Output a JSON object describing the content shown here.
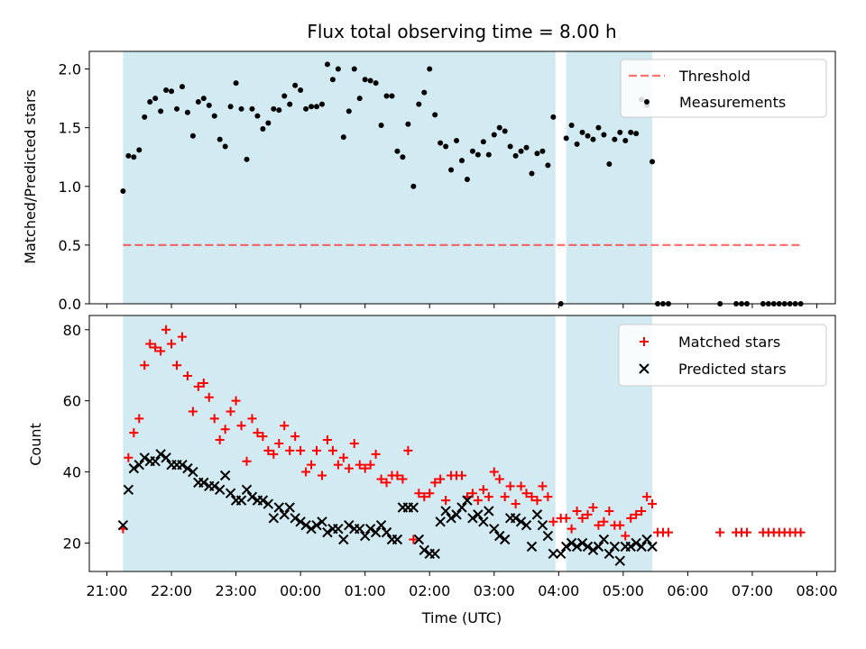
{
  "title": "Flux total observing time = 8.00 h",
  "colors": {
    "shade": "#add8e6",
    "threshold": "#ff0000",
    "matched": "#ff0000",
    "predicted": "#000000",
    "measurement": "#000000"
  },
  "chart_data": [
    {
      "type": "scatter",
      "ylabel": "Matched/Predicted stars",
      "xlim": [
        "21:00",
        "08:00"
      ],
      "ylim": [
        0,
        2.15
      ],
      "yticks": [
        "0.0",
        "0.5",
        "1.0",
        "1.5",
        "2.0"
      ],
      "yticks_values": [
        0,
        0.5,
        1.0,
        1.5,
        2.0
      ],
      "legend": {
        "position": "top-right",
        "entries": [
          "Threshold",
          "Measurements"
        ]
      },
      "shaded_spans": [
        [
          "21:15",
          "03:57"
        ],
        [
          "04:07",
          "05:27"
        ]
      ],
      "threshold": {
        "name": "Threshold",
        "y": 0.5,
        "x": [
          "21:15",
          "07:45"
        ]
      },
      "series": [
        {
          "name": "Measurements",
          "x": [
            "21:15",
            "21:20",
            "21:25",
            "21:30",
            "21:35",
            "21:40",
            "21:45",
            "21:50",
            "21:55",
            "22:00",
            "22:05",
            "22:10",
            "22:15",
            "22:20",
            "22:25",
            "22:30",
            "22:35",
            "22:40",
            "22:45",
            "22:50",
            "22:55",
            "23:00",
            "23:05",
            "23:10",
            "23:15",
            "23:20",
            "23:25",
            "23:30",
            "23:35",
            "23:40",
            "23:45",
            "23:50",
            "23:55",
            "00:00",
            "00:05",
            "00:10",
            "00:15",
            "00:20",
            "00:25",
            "00:30",
            "00:35",
            "00:40",
            "00:45",
            "00:50",
            "00:55",
            "01:00",
            "01:05",
            "01:10",
            "01:15",
            "01:20",
            "01:25",
            "01:30",
            "01:35",
            "01:40",
            "01:45",
            "01:50",
            "01:55",
            "02:00",
            "02:05",
            "02:10",
            "02:15",
            "02:20",
            "02:25",
            "02:30",
            "02:35",
            "02:40",
            "02:45",
            "02:50",
            "02:55",
            "03:00",
            "03:05",
            "03:10",
            "03:15",
            "03:20",
            "03:25",
            "03:30",
            "03:35",
            "03:40",
            "03:45",
            "03:50",
            "03:55",
            "04:02",
            "04:07",
            "04:12",
            "04:17",
            "04:22",
            "04:27",
            "04:32",
            "04:37",
            "04:42",
            "04:47",
            "04:52",
            "04:57",
            "05:02",
            "05:07",
            "05:12",
            "05:17",
            "05:22",
            "05:27",
            "05:32",
            "05:37",
            "05:42",
            "06:30",
            "06:45",
            "06:50",
            "06:55",
            "07:10",
            "07:15",
            "07:20",
            "07:25",
            "07:30",
            "07:35",
            "07:40",
            "07:45"
          ],
          "y": [
            0.96,
            1.26,
            1.25,
            1.31,
            1.59,
            1.72,
            1.75,
            1.64,
            1.82,
            1.81,
            1.66,
            1.85,
            1.63,
            1.43,
            1.72,
            1.75,
            1.69,
            1.6,
            1.4,
            1.34,
            1.68,
            1.88,
            1.66,
            1.23,
            1.66,
            1.6,
            1.49,
            1.54,
            1.66,
            1.65,
            1.77,
            1.7,
            1.86,
            1.82,
            1.66,
            1.68,
            1.68,
            1.7,
            2.04,
            1.91,
            2.0,
            1.42,
            1.64,
            2.0,
            1.75,
            1.91,
            1.9,
            1.88,
            1.52,
            1.77,
            1.77,
            1.3,
            1.25,
            1.53,
            1.0,
            1.7,
            1.8,
            2.0,
            1.61,
            1.37,
            1.34,
            1.14,
            1.39,
            1.22,
            1.06,
            1.3,
            1.27,
            1.38,
            1.27,
            1.44,
            1.5,
            1.47,
            1.34,
            1.26,
            1.3,
            1.33,
            1.11,
            1.28,
            1.3,
            1.18,
            1.59,
            0.0,
            1.41,
            1.52,
            1.36,
            1.46,
            1.43,
            1.4,
            1.5,
            1.44,
            1.19,
            1.4,
            1.46,
            1.39,
            1.46,
            1.45,
            1.74,
            1.69,
            1.21,
            0.0,
            0.0,
            0.0,
            0.0,
            0.0,
            0.0,
            0.0,
            0.0,
            0.0,
            0.0,
            0.0,
            0.0,
            0.0,
            0.0,
            0.0
          ]
        }
      ]
    },
    {
      "type": "scatter",
      "xlabel": "Time (UTC)",
      "ylabel": "Count",
      "xlim": [
        "21:00",
        "08:00"
      ],
      "xticks": [
        "21:00",
        "22:00",
        "23:00",
        "00:00",
        "01:00",
        "02:00",
        "03:00",
        "04:00",
        "05:00",
        "06:00",
        "07:00",
        "08:00"
      ],
      "ylim": [
        12,
        84
      ],
      "yticks": [
        "20",
        "40",
        "60",
        "80"
      ],
      "yticks_values": [
        20,
        40,
        60,
        80
      ],
      "legend": {
        "position": "top-right",
        "entries": [
          "Matched stars",
          "Predicted stars"
        ]
      },
      "shaded_spans": [
        [
          "21:15",
          "03:57"
        ],
        [
          "04:07",
          "05:27"
        ]
      ],
      "series": [
        {
          "name": "Matched stars",
          "marker": "+",
          "x": [
            "21:15",
            "21:20",
            "21:25",
            "21:30",
            "21:35",
            "21:40",
            "21:45",
            "21:50",
            "21:55",
            "22:00",
            "22:05",
            "22:10",
            "22:15",
            "22:20",
            "22:25",
            "22:30",
            "22:35",
            "22:40",
            "22:45",
            "22:50",
            "22:55",
            "23:00",
            "23:05",
            "23:10",
            "23:15",
            "23:20",
            "23:25",
            "23:30",
            "23:35",
            "23:40",
            "23:45",
            "23:50",
            "23:55",
            "00:00",
            "00:05",
            "00:10",
            "00:15",
            "00:20",
            "00:25",
            "00:30",
            "00:35",
            "00:40",
            "00:45",
            "00:50",
            "00:55",
            "01:00",
            "01:05",
            "01:10",
            "01:15",
            "01:20",
            "01:25",
            "01:30",
            "01:35",
            "01:40",
            "01:45",
            "01:50",
            "01:55",
            "02:00",
            "02:05",
            "02:10",
            "02:15",
            "02:20",
            "02:25",
            "02:30",
            "02:35",
            "02:40",
            "02:45",
            "02:50",
            "02:55",
            "03:00",
            "03:05",
            "03:10",
            "03:15",
            "03:20",
            "03:25",
            "03:30",
            "03:35",
            "03:40",
            "03:45",
            "03:50",
            "03:55",
            "04:02",
            "04:07",
            "04:12",
            "04:17",
            "04:22",
            "04:27",
            "04:32",
            "04:37",
            "04:42",
            "04:47",
            "04:52",
            "04:57",
            "05:02",
            "05:07",
            "05:12",
            "05:17",
            "05:22",
            "05:27",
            "05:32",
            "05:37",
            "05:42",
            "06:30",
            "06:45",
            "06:50",
            "06:55",
            "07:10",
            "07:15",
            "07:20",
            "07:25",
            "07:30",
            "07:35",
            "07:40",
            "07:45"
          ],
          "y": [
            24,
            44,
            51,
            55,
            70,
            76,
            75,
            74,
            80,
            76,
            70,
            78,
            67,
            57,
            64,
            65,
            61,
            55,
            49,
            52,
            57,
            60,
            53,
            43,
            55,
            51,
            50,
            46,
            45,
            48,
            53,
            46,
            50,
            46,
            40,
            42,
            46,
            39,
            49,
            46,
            42,
            44,
            41,
            48,
            42,
            41,
            42,
            45,
            38,
            37,
            39,
            39,
            38,
            46,
            21,
            34,
            33,
            34,
            37,
            38,
            32,
            39,
            39,
            39,
            33,
            34,
            32,
            35,
            33,
            40,
            38,
            33,
            36,
            31,
            36,
            34,
            33,
            32,
            36,
            33,
            26,
            27,
            27,
            24,
            29,
            27,
            28,
            30,
            25,
            26,
            29,
            25,
            25,
            22,
            27,
            28,
            29,
            33,
            31,
            23,
            23,
            23,
            23,
            23,
            23,
            23,
            23,
            23,
            23,
            23,
            23,
            23,
            23,
            23
          ]
        },
        {
          "name": "Predicted stars",
          "marker": "x",
          "x": [
            "21:15",
            "21:20",
            "21:25",
            "21:30",
            "21:35",
            "21:40",
            "21:45",
            "21:50",
            "21:55",
            "22:00",
            "22:05",
            "22:10",
            "22:15",
            "22:20",
            "22:25",
            "22:30",
            "22:35",
            "22:40",
            "22:45",
            "22:50",
            "22:55",
            "23:00",
            "23:05",
            "23:10",
            "23:15",
            "23:20",
            "23:25",
            "23:30",
            "23:35",
            "23:40",
            "23:45",
            "23:50",
            "23:55",
            "00:00",
            "00:05",
            "00:10",
            "00:15",
            "00:20",
            "00:25",
            "00:30",
            "00:35",
            "00:40",
            "00:45",
            "00:50",
            "00:55",
            "01:00",
            "01:05",
            "01:10",
            "01:15",
            "01:20",
            "01:25",
            "01:30",
            "01:35",
            "01:40",
            "01:45",
            "01:50",
            "01:55",
            "02:00",
            "02:05",
            "02:10",
            "02:15",
            "02:20",
            "02:25",
            "02:30",
            "02:35",
            "02:40",
            "02:45",
            "02:50",
            "02:55",
            "03:00",
            "03:05",
            "03:10",
            "03:15",
            "03:20",
            "03:25",
            "03:30",
            "03:35",
            "03:40",
            "03:45",
            "03:50",
            "03:55",
            "04:02",
            "04:07",
            "04:12",
            "04:17",
            "04:22",
            "04:27",
            "04:32",
            "04:37",
            "04:42",
            "04:47",
            "04:52",
            "04:57",
            "05:02",
            "05:07",
            "05:12",
            "05:17",
            "05:22",
            "05:27"
          ],
          "y": [
            25,
            35,
            41,
            42,
            44,
            43,
            43,
            45,
            44,
            42,
            42,
            42,
            41,
            40,
            37,
            37,
            36,
            36,
            35,
            39,
            34,
            32,
            32,
            35,
            33,
            32,
            32,
            31,
            27,
            30,
            28,
            30,
            27,
            26,
            25,
            24,
            25,
            26,
            23,
            24,
            24,
            21,
            25,
            24,
            24,
            22,
            24,
            23,
            25,
            23,
            21,
            21,
            30,
            30,
            30,
            21,
            18,
            17,
            17,
            26,
            29,
            27,
            28,
            30,
            32,
            27,
            28,
            26,
            29,
            24,
            22,
            21,
            27,
            27,
            26,
            25,
            19,
            28,
            25,
            22,
            17,
            17,
            19,
            20,
            19,
            20,
            19,
            18,
            19,
            21,
            17,
            19,
            15,
            19,
            19,
            20,
            19,
            21,
            19
          ]
        }
      ]
    }
  ]
}
